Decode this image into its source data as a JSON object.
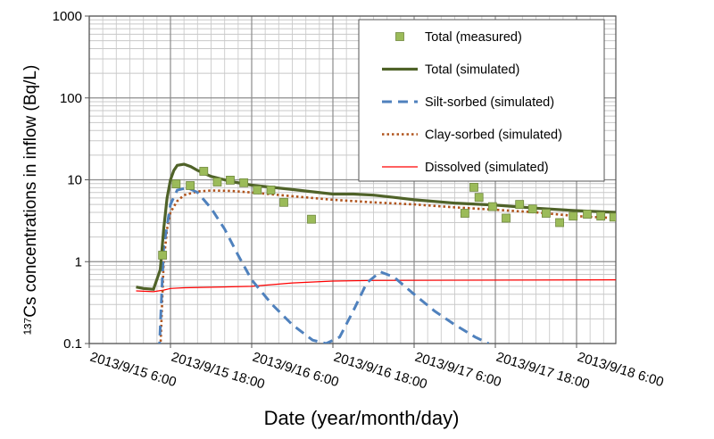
{
  "chart_data": {
    "type": "line",
    "x_label": "Date (year/month/day)",
    "y_label": "¹³⁷Cs concentrations in inflow (Bq/L)",
    "log_y": true,
    "grid": true,
    "legend_position": "upper right",
    "xlim": [
      "2013/9/15 6:00",
      "2013/9/18 11:48"
    ],
    "xticks": [
      "2013/9/15 6:00",
      "2013/9/15 18:00",
      "2013/9/16 6:00",
      "2013/9/16 18:00",
      "2013/9/17 6:00",
      "2013/9/17 18:00",
      "2013/9/18 6:00"
    ],
    "ylim": [
      0.1,
      1000
    ],
    "yticks": [
      0.1,
      1,
      10,
      100,
      1000
    ],
    "series": [
      {
        "name": "Total (measured)",
        "color": "#9bbb59",
        "style": "marker",
        "x": [
          "2013/9/15 16:50",
          "2013/9/15 18:50",
          "2013/9/15 20:55",
          "2013/9/15 22:55",
          "2013/9/16 0:55",
          "2013/9/16 2:50",
          "2013/9/16 4:50",
          "2013/9/16 6:50",
          "2013/9/16 8:50",
          "2013/9/16 10:45",
          "2013/9/16 14:50",
          "2013/9/17 13:30",
          "2013/9/17 14:50",
          "2013/9/17 15:35",
          "2013/9/17 17:35",
          "2013/9/17 19:35",
          "2013/9/17 21:35",
          "2013/9/17 23:30",
          "2013/9/18 1:30",
          "2013/9/18 3:30",
          "2013/9/18 5:30",
          "2013/9/18 7:35",
          "2013/9/18 9:35",
          "2013/9/18 11:30"
        ],
        "values": [
          1.2,
          8.9,
          8.5,
          12.7,
          9.4,
          9.9,
          9.2,
          7.5,
          7.5,
          5.3,
          3.3,
          3.9,
          8.1,
          6.1,
          4.7,
          3.4,
          5.0,
          4.4,
          3.9,
          3.0,
          3.6,
          3.8,
          3.6,
          3.5
        ]
      },
      {
        "name": "Total (simulated)",
        "color": "#4f6228",
        "style": "solid",
        "x": [
          "2013/9/15 12:55",
          "2013/9/15 14:00",
          "2013/9/15 15:30",
          "2013/9/15 16:30",
          "2013/9/15 17:00",
          "2013/9/15 17:30",
          "2013/9/15 18:00",
          "2013/9/15 18:30",
          "2013/9/15 19:00",
          "2013/9/15 20:00",
          "2013/9/15 21:00",
          "2013/9/15 22:00",
          "2013/9/16 0:00",
          "2013/9/16 3:00",
          "2013/9/16 6:00",
          "2013/9/16 12:00",
          "2013/9/16 18:00",
          "2013/9/16 21:00",
          "2013/9/17 0:00",
          "2013/9/17 3:00",
          "2013/9/17 6:00",
          "2013/9/17 12:00",
          "2013/9/17 18:00",
          "2013/9/18 0:00",
          "2013/9/18 6:00",
          "2013/9/18 11:48"
        ],
        "values": [
          0.49,
          0.47,
          0.46,
          0.8,
          2.5,
          6,
          10,
          13,
          15,
          15.5,
          14.5,
          13,
          11,
          9.5,
          8.6,
          7.6,
          6.7,
          6.7,
          6.5,
          6.1,
          5.7,
          5.2,
          4.9,
          4.5,
          4.2,
          4.0
        ]
      },
      {
        "name": "Silt-sorbed (simulated)",
        "color": "#4f81bd",
        "style": "dashed",
        "x": [
          "2013/9/15 16:20",
          "2013/9/15 17:00",
          "2013/9/15 18:00",
          "2013/9/15 19:00",
          "2013/9/15 20:30",
          "2013/9/15 22:00",
          "2013/9/16 0:00",
          "2013/9/16 2:00",
          "2013/9/16 4:00",
          "2013/9/16 6:00",
          "2013/9/16 9:00",
          "2013/9/16 12:00",
          "2013/9/16 15:00",
          "2013/9/16 17:00",
          "2013/9/16 19:00",
          "2013/9/16 21:00",
          "2013/9/16 23:00",
          "2013/9/17 1:00",
          "2013/9/17 3:00",
          "2013/9/17 6:00",
          "2013/9/17 9:00",
          "2013/9/17 12:00",
          "2013/9/17 15:00",
          "2013/9/17 17:00"
        ],
        "values": [
          0.08,
          1.5,
          5,
          7.5,
          8,
          7,
          4.5,
          2.5,
          1.2,
          0.6,
          0.3,
          0.17,
          0.11,
          0.1,
          0.12,
          0.25,
          0.55,
          0.75,
          0.65,
          0.4,
          0.25,
          0.17,
          0.12,
          0.1
        ]
      },
      {
        "name": "Clay-sorbed (simulated)",
        "color": "#b0541c",
        "style": "dotted",
        "x": [
          "2013/9/15 16:30",
          "2013/9/15 17:00",
          "2013/9/15 17:30",
          "2013/9/15 18:00",
          "2013/9/15 19:00",
          "2013/9/15 20:00",
          "2013/9/15 22:00",
          "2013/9/16 0:00",
          "2013/9/16 3:00",
          "2013/9/16 6:00",
          "2013/9/16 12:00",
          "2013/9/16 18:00",
          "2013/9/17 0:00",
          "2013/9/17 6:00",
          "2013/9/17 12:00",
          "2013/9/17 18:00",
          "2013/9/18 0:00",
          "2013/9/18 6:00",
          "2013/9/18 11:48"
        ],
        "values": [
          0.08,
          1,
          2.5,
          4,
          5.5,
          6.5,
          7.2,
          7.4,
          7.3,
          7,
          6.3,
          5.7,
          5.3,
          5.0,
          4.6,
          4.3,
          4.0,
          3.6,
          3.4
        ]
      },
      {
        "name": "Dissolved (simulated)",
        "color": "#ff0000",
        "style": "thin",
        "x": [
          "2013/9/15 12:55",
          "2013/9/15 15:30",
          "2013/9/15 17:00",
          "2013/9/15 18:00",
          "2013/9/15 20:00",
          "2013/9/16 6:00",
          "2013/9/16 12:00",
          "2013/9/16 18:00",
          "2013/9/17 0:00",
          "2013/9/18 11:48"
        ],
        "values": [
          0.44,
          0.43,
          0.45,
          0.47,
          0.48,
          0.5,
          0.55,
          0.58,
          0.59,
          0.6
        ]
      }
    ]
  }
}
